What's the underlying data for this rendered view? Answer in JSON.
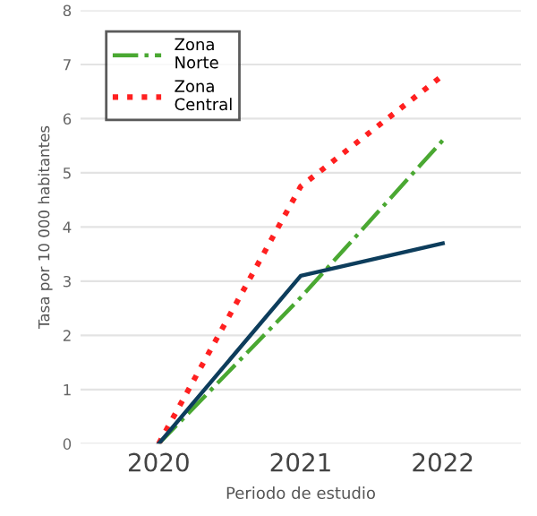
{
  "chart_data": {
    "type": "line",
    "xlabel": "Periodo de estudio",
    "ylabel": "Tasa por 10 000 habitantes",
    "categories": [
      "2020",
      "2021",
      "2022"
    ],
    "series": [
      {
        "name": "Zona Norte",
        "color": "#4aa832",
        "line_style": "dashdot",
        "values": [
          0,
          2.7,
          5.6
        ]
      },
      {
        "name": "Zona Central",
        "color": "#ff2020",
        "line_style": "dotted",
        "values": [
          0,
          4.75,
          6.8
        ]
      },
      {
        "color": "#0d3d5c",
        "line_style": "solid",
        "values": [
          0,
          3.1,
          3.7
        ]
      }
    ],
    "ylim": [
      0,
      8
    ],
    "yticks": [
      0,
      1,
      2,
      3,
      4,
      5,
      6,
      7,
      8
    ],
    "grid": "y",
    "legend": "top left",
    "marker": "none"
  }
}
